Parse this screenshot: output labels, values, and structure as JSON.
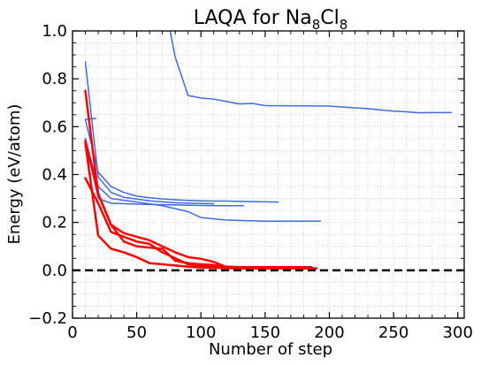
{
  "chart_data": {
    "type": "line",
    "title": "LAQA for Na",
    "title_sub1": "8",
    "title_mid": "Cl",
    "title_sub2": "8",
    "xlabel": "Number of step",
    "ylabel": "Energy (eV/atom)",
    "xlim": [
      0,
      305
    ],
    "ylim": [
      -0.2,
      1.0
    ],
    "xticks": [
      0,
      50,
      100,
      150,
      200,
      250,
      300
    ],
    "xtick_labels": [
      "0",
      "50",
      "100",
      "150",
      "200",
      "250",
      "300"
    ],
    "yticks": [
      -0.2,
      0.0,
      0.2,
      0.4,
      0.6,
      0.8,
      1.0
    ],
    "ytick_labels": [
      "−0.2",
      "0.0",
      "0.2",
      "0.4",
      "0.6",
      "0.8",
      "1.0"
    ],
    "grid": true,
    "reference_line": {
      "y": 0.0,
      "style": "dashed",
      "color": "#000000"
    },
    "series": [
      {
        "name": "blue-1",
        "color": "#4169e1",
        "width": 1.5,
        "x": [
          76,
          80,
          90,
          100,
          110,
          120,
          130,
          140,
          150,
          200,
          230,
          250,
          260,
          270,
          280,
          295
        ],
        "y": [
          1.0,
          0.89,
          0.73,
          0.72,
          0.715,
          0.705,
          0.695,
          0.697,
          0.688,
          0.686,
          0.675,
          0.665,
          0.662,
          0.658,
          0.659,
          0.659
        ]
      },
      {
        "name": "blue-2",
        "color": "#4169e1",
        "width": 1.5,
        "x": [
          10,
          20,
          30,
          40,
          50,
          60,
          70,
          80,
          90,
          100,
          110,
          120,
          130,
          140,
          150,
          160
        ],
        "y": [
          0.63,
          0.41,
          0.35,
          0.325,
          0.31,
          0.303,
          0.298,
          0.295,
          0.292,
          0.29,
          0.289,
          0.289,
          0.288,
          0.287,
          0.286,
          0.285
        ]
      },
      {
        "name": "blue-3",
        "color": "#4169e1",
        "width": 1.5,
        "x": [
          10,
          20,
          30,
          40,
          60,
          80,
          100,
          110
        ],
        "y": [
          0.87,
          0.39,
          0.325,
          0.305,
          0.29,
          0.282,
          0.279,
          0.278
        ]
      },
      {
        "name": "blue-4",
        "color": "#4169e1",
        "width": 1.5,
        "x": [
          10,
          20,
          30,
          40,
          60,
          80,
          100,
          120,
          133
        ],
        "y": [
          0.55,
          0.3,
          0.28,
          0.278,
          0.275,
          0.273,
          0.271,
          0.27,
          0.27
        ]
      },
      {
        "name": "blue-5",
        "color": "#4169e1",
        "width": 1.5,
        "x": [
          10,
          20,
          30,
          50,
          70,
          90,
          100,
          120,
          150,
          193
        ],
        "y": [
          0.55,
          0.35,
          0.3,
          0.285,
          0.27,
          0.245,
          0.22,
          0.21,
          0.205,
          0.205
        ]
      },
      {
        "name": "blue-6",
        "color": "#4169e1",
        "width": 1.5,
        "x": [
          10,
          18
        ],
        "y": [
          0.63,
          0.635
        ]
      },
      {
        "name": "red-1",
        "color": "#ff0000",
        "width": 2.5,
        "x": [
          10,
          20,
          30,
          40,
          50,
          60,
          70,
          80,
          90,
          100,
          110,
          120,
          130,
          150,
          188
        ],
        "y": [
          0.75,
          0.32,
          0.19,
          0.155,
          0.14,
          0.125,
          0.1,
          0.075,
          0.055,
          0.048,
          0.035,
          0.013,
          0.01,
          0.008,
          0.008
        ]
      },
      {
        "name": "red-2",
        "color": "#ff0000",
        "width": 2.5,
        "x": [
          10,
          20,
          30,
          40,
          50,
          60,
          70,
          80,
          90,
          100,
          110,
          120,
          130,
          150,
          182
        ],
        "y": [
          0.54,
          0.32,
          0.19,
          0.12,
          0.1,
          0.095,
          0.09,
          0.04,
          0.03,
          0.025,
          0.022,
          0.01,
          0.008,
          0.008,
          0.008
        ]
      },
      {
        "name": "red-3",
        "color": "#ff0000",
        "width": 2.5,
        "x": [
          10,
          20,
          30,
          40,
          50,
          60,
          70,
          80,
          90,
          100,
          115,
          130,
          150,
          190
        ],
        "y": [
          0.53,
          0.145,
          0.09,
          0.075,
          0.055,
          0.03,
          0.025,
          0.02,
          0.015,
          0.012,
          0.01,
          0.008,
          0.008,
          0.008
        ]
      },
      {
        "name": "red-4",
        "color": "#ff0000",
        "width": 2.5,
        "x": [
          10,
          20,
          30,
          40,
          50,
          60,
          70,
          80,
          90,
          100,
          110,
          120,
          130,
          150,
          186
        ],
        "y": [
          0.385,
          0.28,
          0.16,
          0.14,
          0.12,
          0.11,
          0.075,
          0.05,
          0.025,
          0.02,
          0.015,
          0.015,
          0.013,
          0.013,
          0.013
        ]
      }
    ]
  }
}
